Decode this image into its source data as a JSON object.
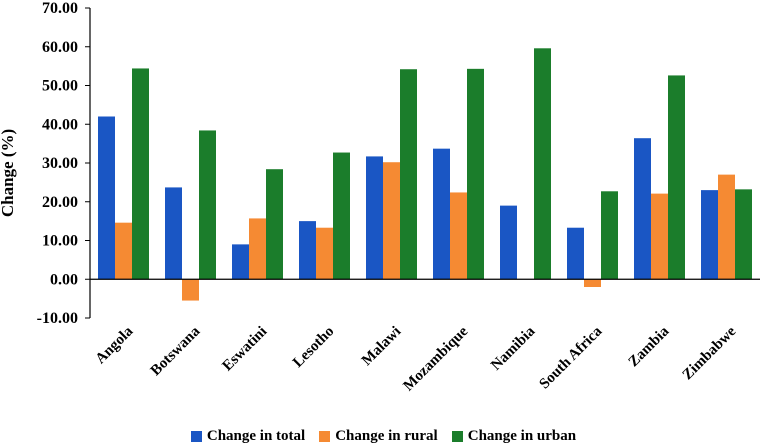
{
  "chart_data": {
    "type": "bar",
    "ylabel": "Change (%)",
    "ylim": [
      -10,
      70
    ],
    "yticks": [
      "-10.00",
      "0.00",
      "10.00",
      "20.00",
      "30.00",
      "40.00",
      "50.00",
      "60.00",
      "70.00"
    ],
    "categories": [
      "Angola",
      "Botswana",
      "Eswatini",
      "Lesotho",
      "Malawi",
      "Mozambique",
      "Namibia",
      "South Africa",
      "Zambia",
      "Zimbabwe"
    ],
    "series": [
      {
        "name": "Change in total",
        "color": "#1a56c4",
        "values": [
          42.0,
          23.7,
          9.0,
          15.0,
          31.7,
          33.7,
          19.0,
          13.3,
          36.4,
          23.0
        ]
      },
      {
        "name": "Change in rural",
        "color": "#f58a33",
        "values": [
          14.6,
          -5.5,
          15.7,
          13.3,
          30.2,
          22.4,
          0,
          -2.0,
          22.1,
          27.0
        ]
      },
      {
        "name": "Change in urban",
        "color": "#1b7d2b",
        "values": [
          54.4,
          38.4,
          28.4,
          32.7,
          54.2,
          54.3,
          59.6,
          22.7,
          52.6,
          23.2
        ]
      }
    ],
    "grid": false,
    "legend": "bottom"
  }
}
